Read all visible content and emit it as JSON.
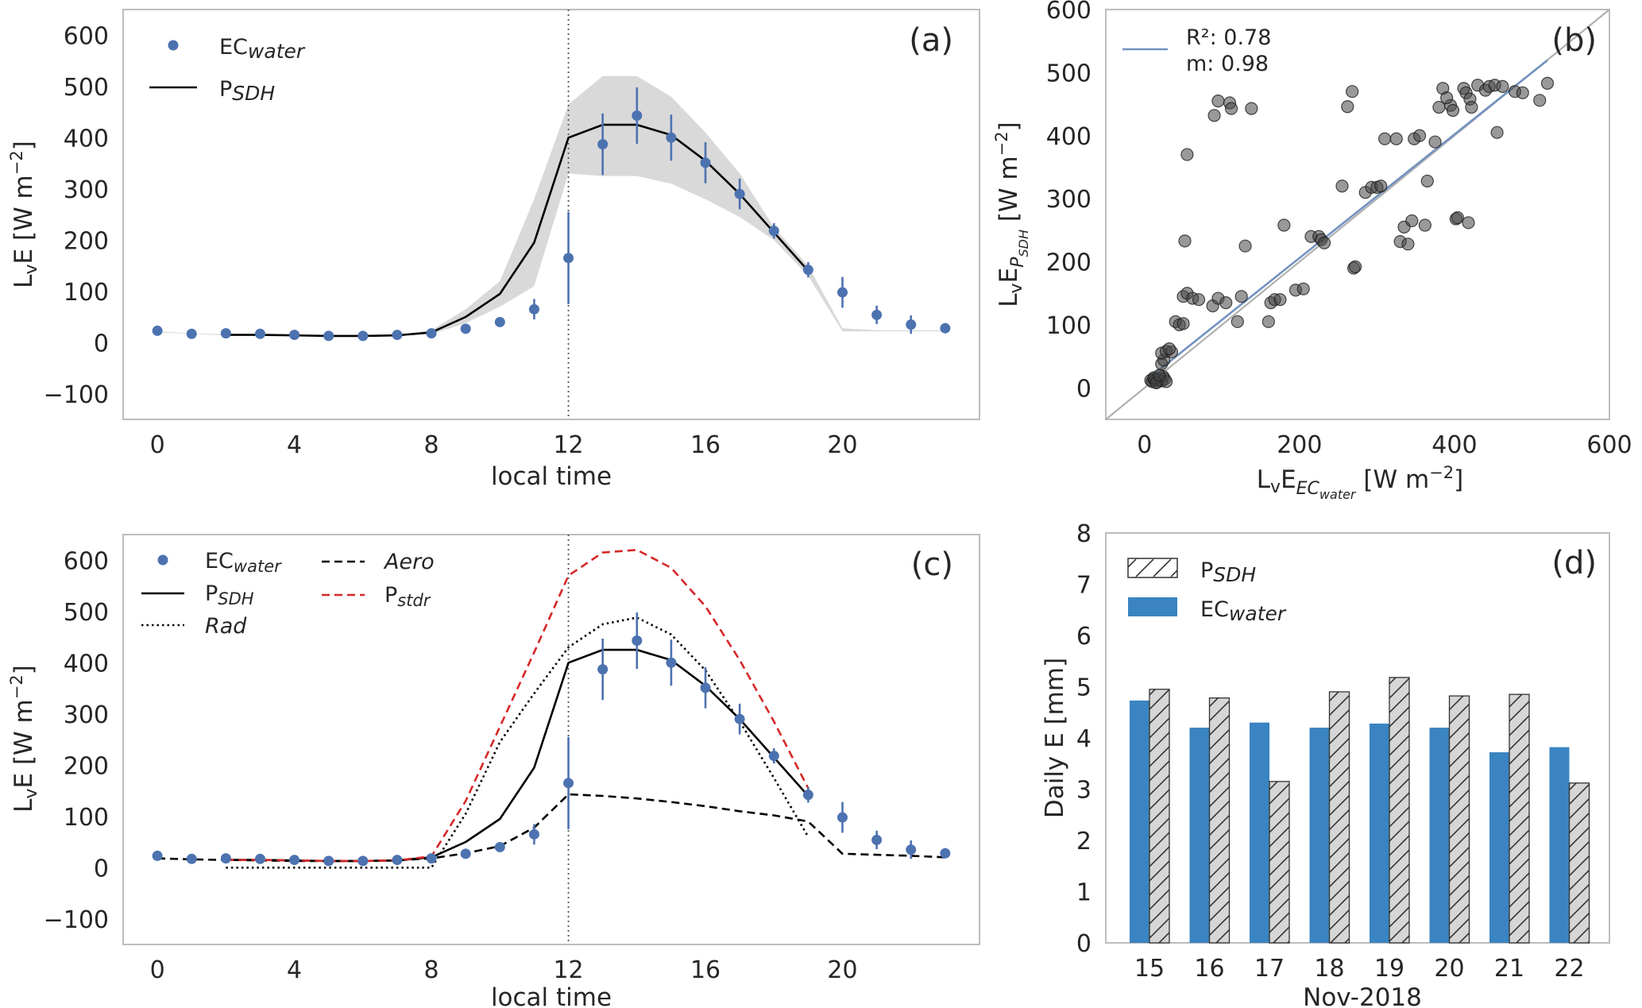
{
  "chart_data": [
    {
      "panel": "a",
      "type": "line",
      "label": "(a)",
      "xlabel": "local time",
      "ylabel": "LᵥE [W m⁻²]",
      "xlim": [
        -1,
        24
      ],
      "ylim": [
        -150,
        650
      ],
      "xticks": [
        0,
        4,
        8,
        12,
        16,
        20
      ],
      "yticks": [
        -100,
        0,
        100,
        200,
        300,
        400,
        500,
        600
      ],
      "grid": false,
      "legend_position": "top-left",
      "vline_x": 12,
      "series": [
        {
          "name": "ECwater",
          "kind": "scatter-errorbar",
          "color": "#4c72b0",
          "x": [
            0,
            1,
            2,
            3,
            4,
            5,
            6,
            7,
            8,
            9,
            10,
            11,
            12,
            13,
            14,
            15,
            16,
            17,
            18,
            19,
            20,
            21,
            22,
            23
          ],
          "y": [
            23,
            17,
            18,
            17,
            15,
            13,
            13,
            15,
            18,
            27,
            40,
            65,
            165,
            387,
            443,
            400,
            351,
            290,
            218,
            142,
            98,
            54,
            35,
            28
          ],
          "err": [
            0,
            0,
            0,
            0,
            0,
            0,
            0,
            0,
            0,
            0,
            0,
            20,
            90,
            60,
            55,
            45,
            40,
            30,
            15,
            15,
            30,
            18,
            18,
            10
          ]
        },
        {
          "name": "PSDH",
          "kind": "line",
          "color": "#000000",
          "x": [
            2,
            3,
            4,
            5,
            6,
            7,
            8,
            9,
            10,
            11,
            12,
            13,
            14,
            15,
            16,
            17,
            18,
            19
          ],
          "y": [
            15,
            15,
            14,
            13,
            13,
            14,
            20,
            50,
            95,
            195,
            400,
            425,
            425,
            405,
            355,
            290,
            215,
            140
          ]
        },
        {
          "name": "PSDH-band",
          "kind": "band",
          "color": "#d9d9d9",
          "x": [
            0,
            1,
            2,
            3,
            4,
            5,
            6,
            7,
            8,
            9,
            10,
            11,
            12,
            13,
            14,
            15,
            16,
            17,
            18,
            19,
            20,
            21,
            22,
            23
          ],
          "lower": [
            20,
            17,
            14,
            14,
            13,
            12,
            12,
            13,
            16,
            38,
            70,
            110,
            330,
            325,
            325,
            310,
            280,
            245,
            200,
            130,
            22,
            22,
            22,
            22
          ],
          "upper": [
            22,
            18,
            16,
            16,
            15,
            14,
            14,
            15,
            24,
            65,
            120,
            280,
            465,
            520,
            520,
            480,
            410,
            330,
            225,
            150,
            28,
            24,
            24,
            24
          ]
        }
      ]
    },
    {
      "panel": "b",
      "type": "scatter",
      "label": "(b)",
      "xlabel": "LᵥE_EC_water [W m⁻²]",
      "ylabel": "LᵥE_P_SDH [W m⁻²]",
      "xlim": [
        -50,
        600
      ],
      "ylim": [
        -50,
        600
      ],
      "xticks": [
        0,
        200,
        400,
        600
      ],
      "yticks": [
        0,
        100,
        200,
        300,
        400,
        500,
        600
      ],
      "grid": false,
      "legend_position": "top-left",
      "legend_r2_label": "R²: 0.78",
      "legend_m_label": "m: 0.98",
      "fit": {
        "slope": 0.98,
        "intercept": 10,
        "x_range": [
          5,
          520
        ],
        "color": "#7293c0"
      },
      "one_to_one": {
        "color": "#b0b0b0"
      },
      "points": [
        [
          8,
          12
        ],
        [
          10,
          10
        ],
        [
          12,
          14
        ],
        [
          14,
          13
        ],
        [
          16,
          9
        ],
        [
          18,
          12
        ],
        [
          20,
          15
        ],
        [
          22,
          11
        ],
        [
          24,
          18
        ],
        [
          26,
          14
        ],
        [
          28,
          10
        ],
        [
          12,
          16
        ],
        [
          15,
          8
        ],
        [
          19,
          20
        ],
        [
          22,
          38
        ],
        [
          25,
          44
        ],
        [
          22,
          55
        ],
        [
          28,
          58
        ],
        [
          35,
          57
        ],
        [
          32,
          62
        ],
        [
          40,
          105
        ],
        [
          45,
          100
        ],
        [
          50,
          102
        ],
        [
          50,
          145
        ],
        [
          55,
          150
        ],
        [
          62,
          142
        ],
        [
          70,
          140
        ],
        [
          52,
          233
        ],
        [
          55,
          370
        ],
        [
          88,
          130
        ],
        [
          95,
          142
        ],
        [
          105,
          135
        ],
        [
          120,
          105
        ],
        [
          125,
          145
        ],
        [
          130,
          225
        ],
        [
          90,
          432
        ],
        [
          95,
          455
        ],
        [
          110,
          452
        ],
        [
          112,
          443
        ],
        [
          138,
          443
        ],
        [
          160,
          105
        ],
        [
          163,
          135
        ],
        [
          168,
          140
        ],
        [
          175,
          140
        ],
        [
          180,
          258
        ],
        [
          195,
          155
        ],
        [
          205,
          157
        ],
        [
          215,
          240
        ],
        [
          225,
          240
        ],
        [
          228,
          235
        ],
        [
          232,
          230
        ],
        [
          255,
          320
        ],
        [
          262,
          446
        ],
        [
          268,
          470
        ],
        [
          270,
          190
        ],
        [
          272,
          192
        ],
        [
          285,
          310
        ],
        [
          293,
          318
        ],
        [
          300,
          318
        ],
        [
          305,
          320
        ],
        [
          310,
          395
        ],
        [
          325,
          395
        ],
        [
          330,
          232
        ],
        [
          340,
          228
        ],
        [
          335,
          255
        ],
        [
          345,
          265
        ],
        [
          348,
          395
        ],
        [
          355,
          400
        ],
        [
          362,
          258
        ],
        [
          365,
          328
        ],
        [
          375,
          390
        ],
        [
          380,
          445
        ],
        [
          385,
          475
        ],
        [
          395,
          448
        ],
        [
          390,
          460
        ],
        [
          398,
          440
        ],
        [
          402,
          268
        ],
        [
          404,
          270
        ],
        [
          412,
          475
        ],
        [
          415,
          468
        ],
        [
          418,
          262
        ],
        [
          420,
          458
        ],
        [
          422,
          445
        ],
        [
          430,
          480
        ],
        [
          440,
          472
        ],
        [
          445,
          478
        ],
        [
          452,
          480
        ],
        [
          455,
          405
        ],
        [
          462,
          478
        ],
        [
          478,
          470
        ],
        [
          488,
          468
        ],
        [
          510,
          456
        ],
        [
          520,
          483
        ]
      ]
    },
    {
      "panel": "c",
      "type": "line",
      "label": "(c)",
      "xlabel": "local time",
      "ylabel": "LᵥE [W m⁻²]",
      "xlim": [
        -1,
        24
      ],
      "ylim": [
        -150,
        650
      ],
      "xticks": [
        0,
        4,
        8,
        12,
        16,
        20
      ],
      "yticks": [
        -100,
        0,
        100,
        200,
        300,
        400,
        500,
        600
      ],
      "grid": false,
      "legend_position": "top-left",
      "vline_x": 12,
      "series": [
        {
          "name": "ECwater",
          "kind": "scatter-errorbar",
          "color": "#4c72b0",
          "x": [
            0,
            1,
            2,
            3,
            4,
            5,
            6,
            7,
            8,
            9,
            10,
            11,
            12,
            13,
            14,
            15,
            16,
            17,
            18,
            19,
            20,
            21,
            22,
            23
          ],
          "y": [
            23,
            17,
            18,
            17,
            15,
            13,
            13,
            15,
            18,
            27,
            40,
            65,
            165,
            387,
            443,
            400,
            351,
            290,
            218,
            142,
            98,
            54,
            35,
            28
          ],
          "err": [
            0,
            0,
            0,
            0,
            0,
            0,
            0,
            0,
            0,
            0,
            0,
            20,
            90,
            60,
            55,
            45,
            40,
            30,
            15,
            15,
            30,
            18,
            18,
            10
          ]
        },
        {
          "name": "PSDH",
          "kind": "line",
          "color": "#000000",
          "dash": "solid",
          "x": [
            2,
            3,
            4,
            5,
            6,
            7,
            8,
            9,
            10,
            11,
            12,
            13,
            14,
            15,
            16,
            17,
            18,
            19
          ],
          "y": [
            15,
            15,
            14,
            13,
            13,
            14,
            20,
            50,
            95,
            195,
            400,
            425,
            425,
            405,
            355,
            290,
            215,
            140
          ]
        },
        {
          "name": "Rad",
          "kind": "line",
          "color": "#000000",
          "dash": "dotted",
          "x": [
            2,
            3,
            4,
            5,
            6,
            7,
            8,
            9,
            10,
            11,
            12,
            13,
            14,
            15,
            16,
            17,
            18,
            19
          ],
          "y": [
            0,
            0,
            0,
            0,
            0,
            0,
            0,
            105,
            245,
            340,
            430,
            475,
            488,
            455,
            385,
            285,
            175,
            60
          ]
        },
        {
          "name": "Aero",
          "kind": "line",
          "color": "#000000",
          "dash": "dashed",
          "x": [
            0,
            1,
            2,
            3,
            4,
            5,
            6,
            7,
            8,
            9,
            10,
            11,
            12,
            13,
            14,
            15,
            16,
            17,
            18,
            19,
            20,
            21,
            22,
            23
          ],
          "y": [
            18,
            16,
            15,
            14,
            13,
            13,
            13,
            14,
            18,
            28,
            42,
            78,
            143,
            140,
            135,
            128,
            120,
            110,
            102,
            90,
            27,
            25,
            23,
            20
          ]
        },
        {
          "name": "Pstdr",
          "kind": "line",
          "color": "#d62728",
          "dash": "dashed",
          "x": [
            2,
            3,
            4,
            5,
            6,
            7,
            8,
            9,
            10,
            11,
            12,
            13,
            14,
            15,
            16,
            17,
            18,
            19
          ],
          "y": [
            15,
            15,
            14,
            13,
            13,
            14,
            22,
            130,
            275,
            420,
            570,
            615,
            620,
            585,
            510,
            405,
            285,
            155
          ]
        }
      ]
    },
    {
      "panel": "d",
      "type": "bar",
      "label": "(d)",
      "xlabel": "Nov-2018",
      "ylabel": "Daily E [mm]",
      "ylim": [
        0,
        8
      ],
      "yticks": [
        0,
        1,
        2,
        3,
        4,
        5,
        6,
        7,
        8
      ],
      "grid": false,
      "legend_position": "top-left",
      "categories": [
        "15",
        "16",
        "17",
        "18",
        "19",
        "20",
        "21",
        "22"
      ],
      "series": [
        {
          "name": "ECwater",
          "color": "#3a84c2",
          "values": [
            4.73,
            4.2,
            4.3,
            4.2,
            4.28,
            4.2,
            3.72,
            3.82
          ]
        },
        {
          "name": "PSDH",
          "color": "#d6d6d6",
          "hatch": true,
          "values": [
            4.95,
            4.78,
            3.15,
            4.9,
            5.18,
            4.82,
            4.85,
            3.12
          ]
        }
      ]
    }
  ]
}
